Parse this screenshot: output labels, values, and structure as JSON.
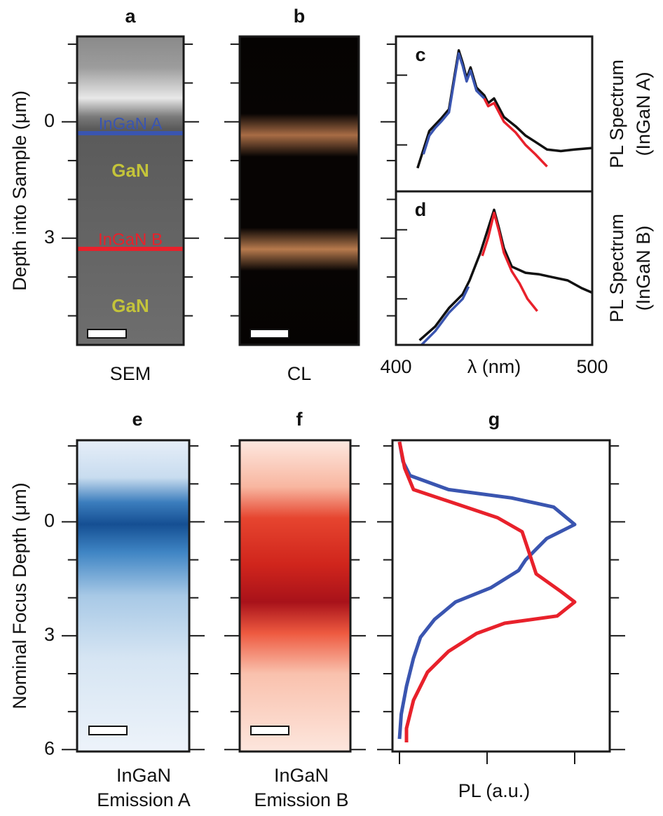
{
  "top_axis": {
    "label": "Depth into Sample (μm)",
    "ylim": [
      -2.2,
      5.75
    ],
    "yticks": [
      0,
      3
    ]
  },
  "bottom_axis": {
    "label": "Nominal Focus Depth (μm)",
    "ylim": [
      -2.15,
      6.05
    ],
    "yticks": [
      0,
      3,
      6
    ]
  },
  "panels": {
    "a": {
      "letter": "a",
      "caption": "SEM",
      "labels": [
        "InGaN A",
        "GaN",
        "InGaN B",
        "GaN"
      ]
    },
    "b": {
      "letter": "b",
      "caption": "CL"
    },
    "e": {
      "letter": "e",
      "caption": [
        "InGaN",
        "Emission A"
      ]
    },
    "f": {
      "letter": "f",
      "caption": [
        "InGaN",
        "Emission B"
      ]
    }
  },
  "chart_data": [
    {
      "type": "line",
      "letter": "c",
      "ylabel": [
        "PL Spectrum",
        "(InGaN A)"
      ],
      "xlim": [
        400,
        500
      ],
      "ylim": [
        0,
        1
      ],
      "series": [
        {
          "color": "#111111",
          "x": [
            411,
            414,
            417,
            420,
            423,
            427,
            430,
            432,
            434,
            436,
            438,
            441,
            445,
            447,
            450,
            455,
            461,
            466,
            471,
            477,
            484,
            491,
            500
          ],
          "values": [
            0.15,
            0.27,
            0.39,
            0.43,
            0.47,
            0.53,
            0.76,
            0.91,
            0.83,
            0.73,
            0.8,
            0.67,
            0.62,
            0.57,
            0.6,
            0.48,
            0.42,
            0.36,
            0.32,
            0.27,
            0.26,
            0.27,
            0.28
          ]
        },
        {
          "color": "#3a55b0",
          "x": [
            414,
            417,
            420,
            423,
            427,
            430,
            432,
            434,
            436,
            438,
            441,
            445
          ],
          "values": [
            0.24,
            0.36,
            0.41,
            0.45,
            0.51,
            0.74,
            0.89,
            0.81,
            0.71,
            0.78,
            0.65,
            0.6
          ]
        },
        {
          "color": "#e8212b",
          "x": [
            445,
            447,
            450,
            455,
            461,
            466,
            471,
            477
          ],
          "values": [
            0.6,
            0.55,
            0.57,
            0.45,
            0.38,
            0.3,
            0.24,
            0.16
          ]
        }
      ]
    },
    {
      "type": "line",
      "letter": "d",
      "ylabel": [
        "PL Spectrum",
        "(InGaN B)"
      ],
      "xlabel": "λ (nm)",
      "xlim": [
        400,
        500
      ],
      "ylim": [
        0,
        1
      ],
      "xticks": [
        400,
        500
      ],
      "series": [
        {
          "color": "#111111",
          "x": [
            412,
            420,
            427,
            434,
            437.5,
            443,
            446,
            450,
            452.5,
            455,
            459,
            466,
            473,
            480,
            487.5,
            494.6,
            500
          ],
          "values": [
            0.03,
            0.12,
            0.24,
            0.33,
            0.42,
            0.6,
            0.72,
            0.88,
            0.76,
            0.63,
            0.51,
            0.47,
            0.46,
            0.44,
            0.42,
            0.37,
            0.34
          ]
        },
        {
          "color": "#3a55b0",
          "x": [
            413,
            420,
            427,
            434,
            437
          ],
          "values": [
            0.0,
            0.09,
            0.21,
            0.3,
            0.38
          ]
        },
        {
          "color": "#e8212b",
          "x": [
            444,
            447,
            450,
            452.5,
            455,
            459,
            463,
            467,
            472
          ],
          "values": [
            0.58,
            0.7,
            0.86,
            0.74,
            0.6,
            0.48,
            0.4,
            0.3,
            0.22
          ]
        }
      ]
    },
    {
      "type": "line",
      "letter": "g",
      "xlabel": "PL (a.u.)",
      "xlim": [
        -0.04,
        1.2
      ],
      "series": [
        {
          "color": "#3a55b0",
          "x": [
            0,
            0.02,
            0.06,
            0.28,
            0.64,
            0.88,
            1.0,
            0.84,
            0.72,
            0.68,
            0.52,
            0.32,
            0.2,
            0.12,
            0.08,
            0.04,
            0.01,
            0.0
          ],
          "y": [
            -2.11,
            -1.59,
            -1.22,
            -0.85,
            -0.63,
            -0.39,
            0.07,
            0.44,
            1.0,
            1.28,
            1.74,
            2.11,
            2.57,
            3.04,
            3.59,
            4.33,
            5.07,
            5.72
          ]
        },
        {
          "color": "#e8212b",
          "x": [
            0,
            0.03,
            0.08,
            0.32,
            0.56,
            0.7,
            0.74,
            0.78,
            0.92,
            1.0,
            0.9,
            0.6,
            0.44,
            0.28,
            0.16,
            0.08,
            0.04,
            0.04
          ],
          "y": [
            -2.11,
            -1.41,
            -0.85,
            -0.48,
            -0.11,
            0.26,
            0.81,
            1.37,
            1.83,
            2.11,
            2.48,
            2.67,
            2.94,
            3.41,
            3.96,
            4.7,
            5.44,
            5.81
          ]
        }
      ]
    }
  ]
}
